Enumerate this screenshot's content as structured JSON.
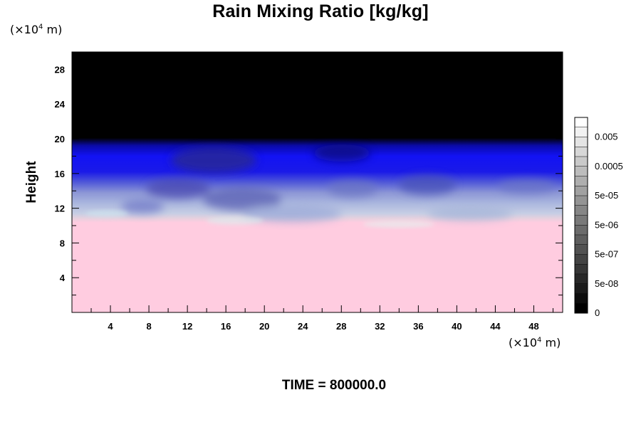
{
  "chart_data": {
    "type": "heatmap",
    "title": "Rain Mixing Ratio [kg/kg]",
    "ylabel": "Height",
    "xlabel": "",
    "x_unit": "(×10",
    "y_unit": "(×10",
    "unit_exponent": "4",
    "unit_suffix": " m)",
    "xlim": [
      0,
      51
    ],
    "ylim": [
      0,
      30
    ],
    "x_ticks": [
      4,
      8,
      12,
      16,
      20,
      24,
      28,
      32,
      36,
      40,
      44,
      48
    ],
    "y_ticks": [
      4,
      8,
      12,
      16,
      20,
      24,
      28
    ],
    "colorbar": {
      "labels": [
        "0.005",
        "0.0005",
        "5e-05",
        "5e-06",
        "5e-07",
        "5e-08",
        "0"
      ],
      "label_values": [
        0.005,
        0.0005,
        5e-05,
        5e-06,
        5e-07,
        5e-08,
        0
      ],
      "levels": 20
    },
    "layers": [
      {
        "name": "surface",
        "y_from": 0,
        "y_to": 10.5,
        "color": "#ffcce0"
      },
      {
        "name": "transition",
        "y_from": 10.5,
        "y_to": 14,
        "color": "#bcc6e6"
      },
      {
        "name": "upper",
        "y_from": 14,
        "y_to": 19.5,
        "color": "#1212f2"
      },
      {
        "name": "top",
        "y_from": 19.5,
        "y_to": 30,
        "color": "#000000"
      }
    ]
  },
  "footer": {
    "time_text": "TIME = 800000.0"
  },
  "colors": {
    "surface": "#ffcce0",
    "mid": "#b8c4e4",
    "blue": "#1010f0",
    "top": "#000000"
  }
}
